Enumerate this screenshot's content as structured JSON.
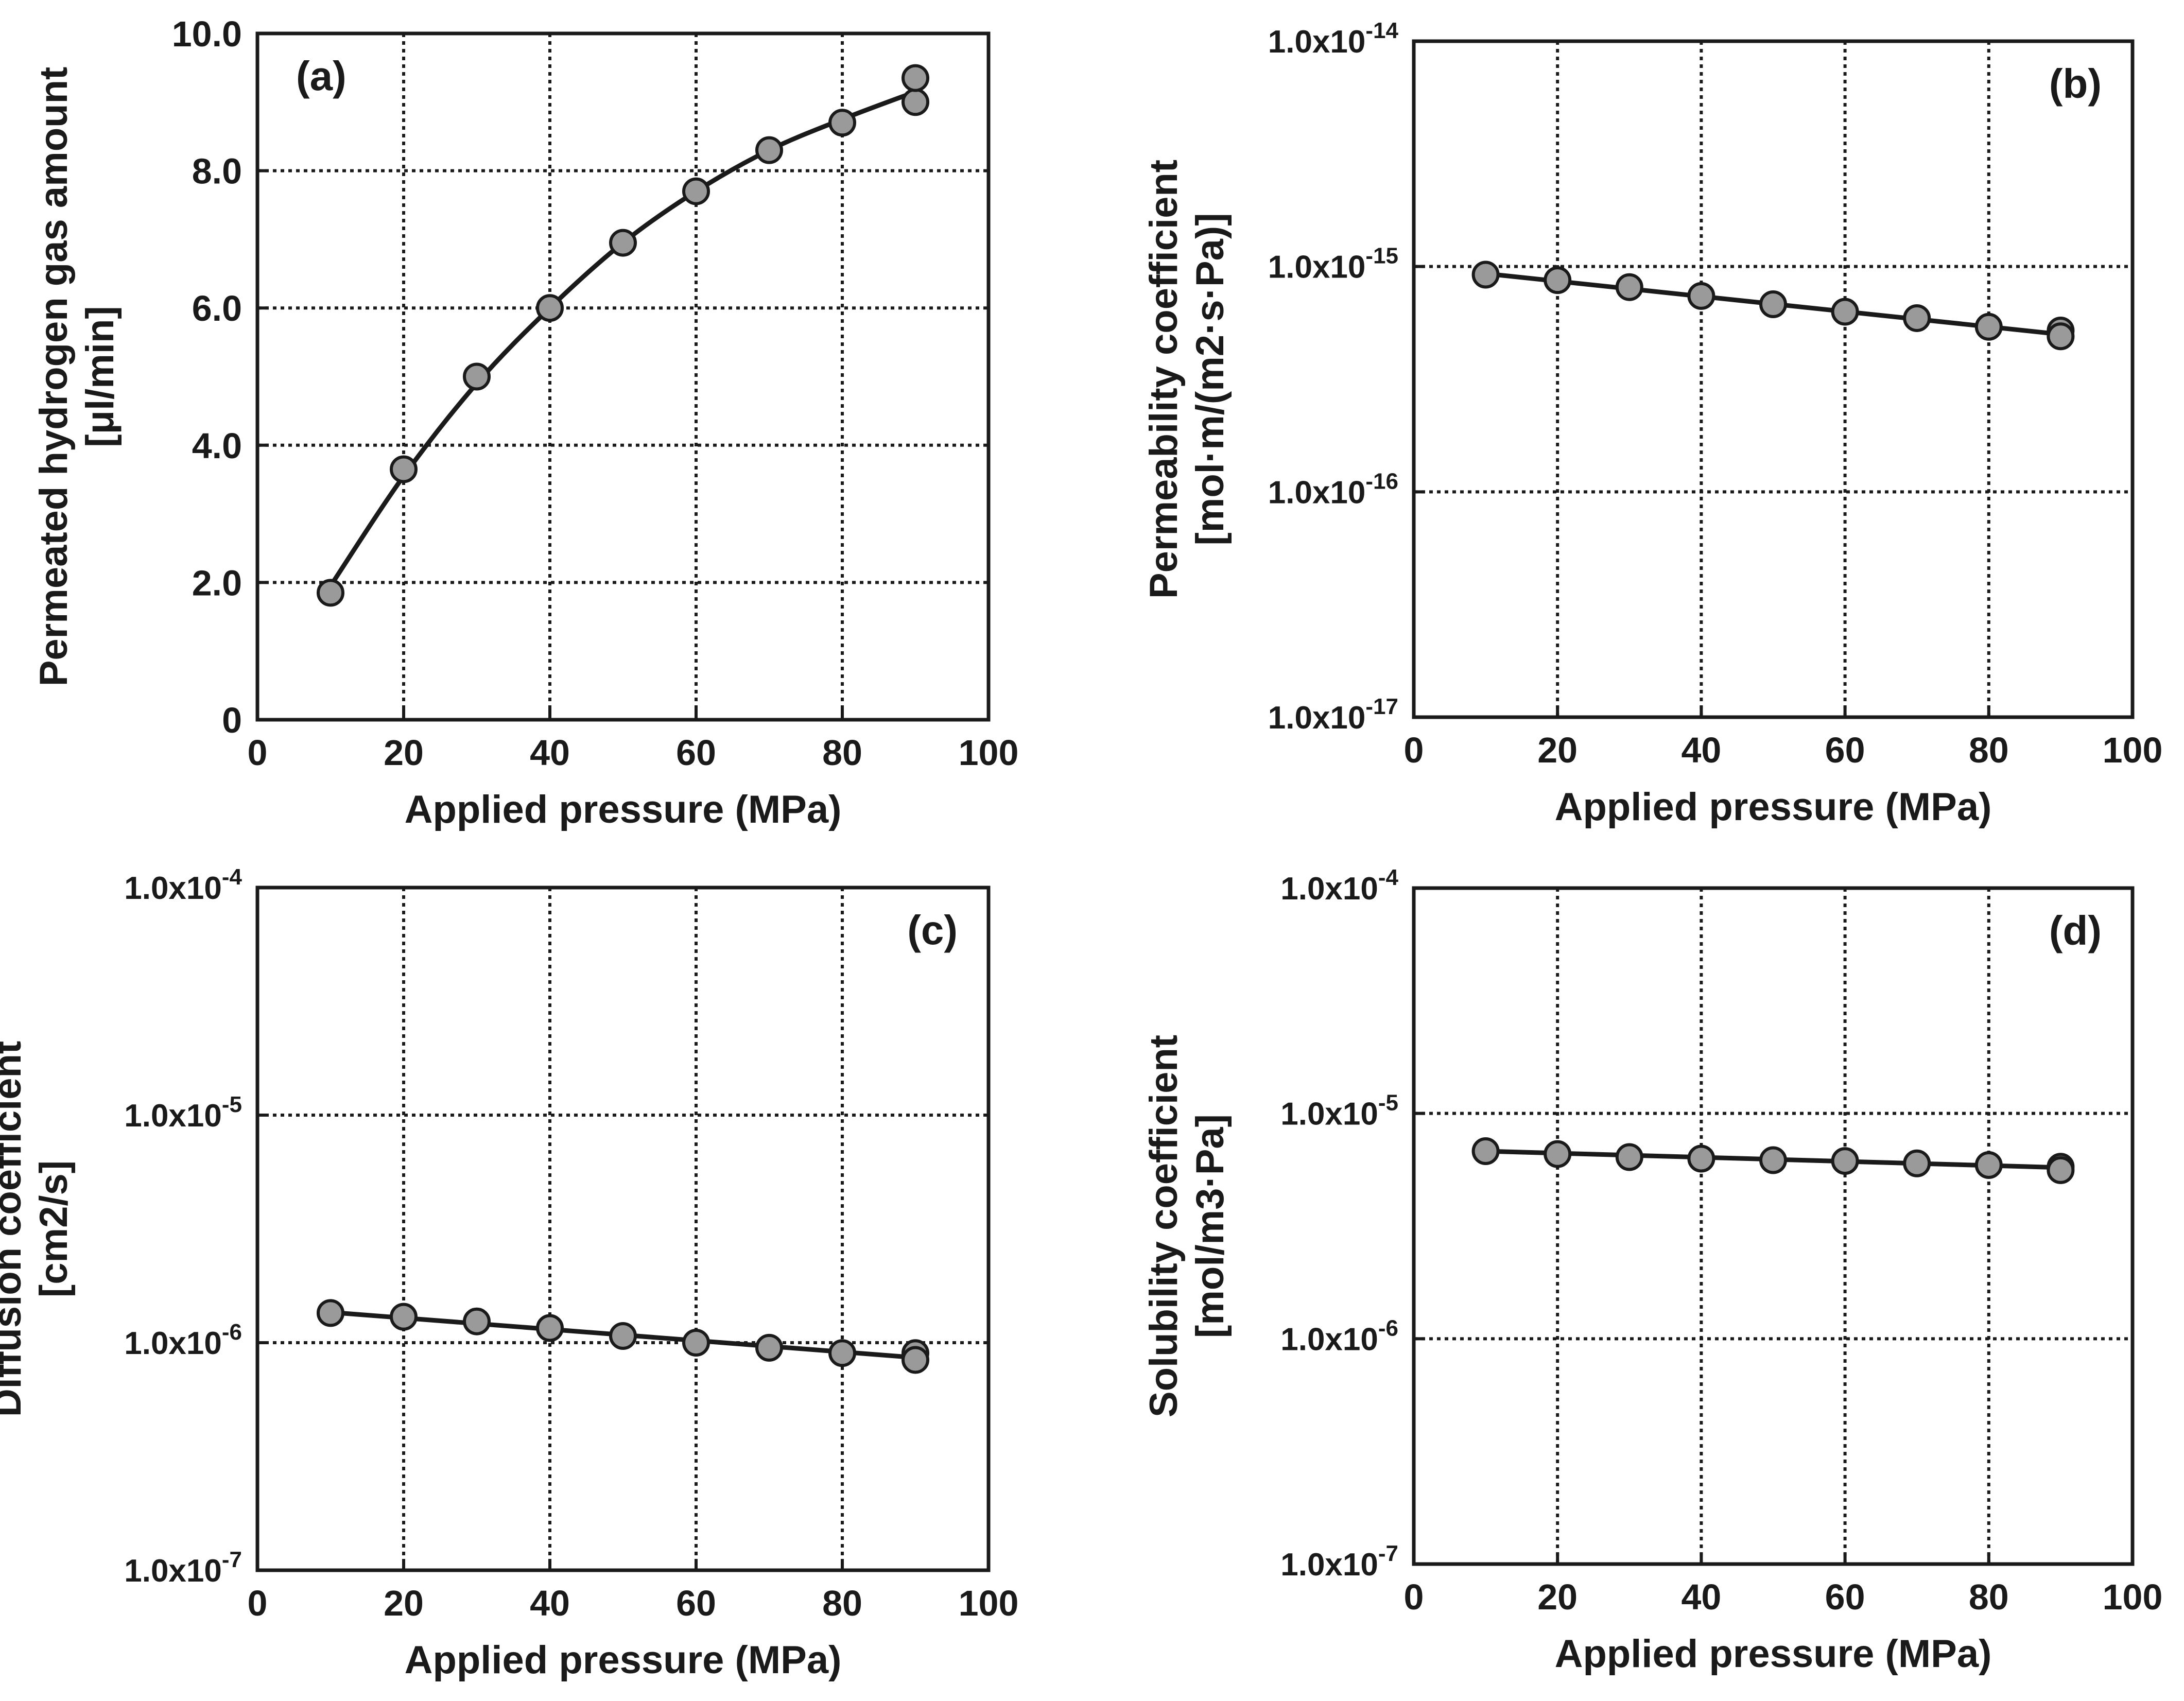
{
  "figure": {
    "background": "#ffffff",
    "ink_color": "#1a1a1a",
    "marker_fill": "#9a9a9a"
  },
  "chart_data": [
    {
      "id": "a",
      "type": "line",
      "panel_label": "(a)",
      "xlabel": "Applied pressure (MPa)",
      "ylabel_lines": [
        "Permeated hydrogen gas amount",
        "[μl/min]"
      ],
      "yscale": "linear",
      "xlim": [
        0,
        100
      ],
      "ylim": [
        0,
        10
      ],
      "xticks": [
        0,
        20,
        40,
        60,
        80,
        100
      ],
      "xtick_labels": [
        "0",
        "20",
        "40",
        "60",
        "80",
        "100"
      ],
      "yticks": [
        0,
        2,
        4,
        6,
        8,
        10
      ],
      "ytick_labels": [
        {
          "base": "0",
          "exp": ""
        },
        {
          "base": "2.0",
          "exp": ""
        },
        {
          "base": "4.0",
          "exp": ""
        },
        {
          "base": "6.0",
          "exp": ""
        },
        {
          "base": "8.0",
          "exp": ""
        },
        {
          "base": "10.0",
          "exp": ""
        }
      ],
      "grid": true,
      "points": {
        "x": [
          10,
          20,
          30,
          40,
          50,
          60,
          70,
          80,
          90,
          90
        ],
        "y": [
          1.85,
          3.65,
          5.0,
          6.0,
          6.95,
          7.7,
          8.3,
          8.7,
          9.0,
          9.35
        ]
      },
      "fit": {
        "x": [
          10,
          20,
          30,
          40,
          50,
          60,
          70,
          80,
          90
        ],
        "y": [
          1.95,
          3.55,
          4.9,
          6.0,
          6.95,
          7.7,
          8.3,
          8.75,
          9.15
        ]
      }
    },
    {
      "id": "b",
      "type": "line",
      "panel_label": "(b)",
      "xlabel": "Applied pressure (MPa)",
      "ylabel_lines": [
        "Permeability coefficient",
        "[mol·m/(m2·s·Pa)]"
      ],
      "yscale": "log",
      "xlim": [
        0,
        100
      ],
      "ylim": [
        1e-17,
        1e-14
      ],
      "xticks": [
        0,
        20,
        40,
        60,
        80,
        100
      ],
      "xtick_labels": [
        "0",
        "20",
        "40",
        "60",
        "80",
        "100"
      ],
      "yticks": [
        1e-17,
        1e-16,
        1e-15,
        1e-14
      ],
      "ytick_labels": [
        {
          "base": "1.0x10",
          "exp": "-17"
        },
        {
          "base": "1.0x10",
          "exp": "-16"
        },
        {
          "base": "1.0x10",
          "exp": "-15"
        },
        {
          "base": "1.0x10",
          "exp": "-14"
        }
      ],
      "grid": true,
      "points": {
        "x": [
          10,
          20,
          30,
          40,
          50,
          60,
          70,
          80,
          90,
          90
        ],
        "y": [
          9.2e-16,
          8.7e-16,
          8.1e-16,
          7.4e-16,
          6.8e-16,
          6.3e-16,
          5.9e-16,
          5.4e-16,
          5.2e-16,
          4.9e-16
        ]
      },
      "fit": {
        "x": [
          10,
          90
        ],
        "y": [
          9.3e-16,
          5e-16
        ]
      }
    },
    {
      "id": "c",
      "type": "line",
      "panel_label": "(c)",
      "xlabel": "Applied pressure (MPa)",
      "ylabel_lines": [
        "Diffusion coefficient",
        "[cm2/s]"
      ],
      "yscale": "log",
      "xlim": [
        0,
        100
      ],
      "ylim": [
        1e-07,
        0.0001
      ],
      "xticks": [
        0,
        20,
        40,
        60,
        80,
        100
      ],
      "xtick_labels": [
        "0",
        "20",
        "40",
        "60",
        "80",
        "100"
      ],
      "yticks": [
        1e-07,
        1e-06,
        1e-05,
        0.0001
      ],
      "ytick_labels": [
        {
          "base": "1.0x10",
          "exp": "-7"
        },
        {
          "base": "1.0x10",
          "exp": "-6"
        },
        {
          "base": "1.0x10",
          "exp": "-5"
        },
        {
          "base": "1.0x10",
          "exp": "-4"
        }
      ],
      "grid": true,
      "points": {
        "x": [
          10,
          20,
          30,
          40,
          50,
          60,
          70,
          80,
          90,
          90
        ],
        "y": [
          1.35e-06,
          1.3e-06,
          1.24e-06,
          1.16e-06,
          1.07e-06,
          1e-06,
          9.5e-07,
          9e-07,
          9e-07,
          8.4e-07
        ]
      },
      "fit": {
        "x": [
          10,
          90
        ],
        "y": [
          1.36e-06,
          8.6e-07
        ]
      }
    },
    {
      "id": "d",
      "type": "line",
      "panel_label": "(d)",
      "xlabel": "Applied pressure (MPa)",
      "ylabel_lines": [
        "Solubility coefficient",
        "[mol/m3·Pa]"
      ],
      "yscale": "log",
      "xlim": [
        0,
        100
      ],
      "ylim": [
        1e-07,
        0.0001
      ],
      "xticks": [
        0,
        20,
        40,
        60,
        80,
        100
      ],
      "xtick_labels": [
        "0",
        "20",
        "40",
        "60",
        "80",
        "100"
      ],
      "yticks": [
        1e-07,
        1e-06,
        1e-05,
        0.0001
      ],
      "ytick_labels": [
        {
          "base": "1.0x10",
          "exp": "-7"
        },
        {
          "base": "1.0x10",
          "exp": "-6"
        },
        {
          "base": "1.0x10",
          "exp": "-5"
        },
        {
          "base": "1.0x10",
          "exp": "-4"
        }
      ],
      "grid": true,
      "points": {
        "x": [
          10,
          20,
          30,
          40,
          50,
          60,
          70,
          80,
          90,
          90
        ],
        "y": [
          6.8e-06,
          6.6e-06,
          6.4e-06,
          6.3e-06,
          6.2e-06,
          6.15e-06,
          6e-06,
          5.9e-06,
          5.8e-06,
          5.6e-06
        ]
      },
      "fit": {
        "x": [
          10,
          90
        ],
        "y": [
          6.8e-06,
          5.75e-06
        ]
      }
    }
  ]
}
